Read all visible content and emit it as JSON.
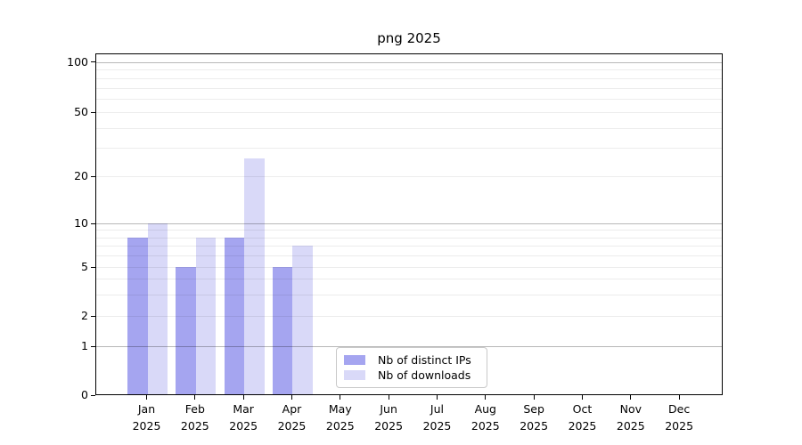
{
  "chart_data": {
    "type": "bar",
    "title": "png 2025",
    "categories": [
      {
        "month": "Jan",
        "year": "2025"
      },
      {
        "month": "Feb",
        "year": "2025"
      },
      {
        "month": "Mar",
        "year": "2025"
      },
      {
        "month": "Apr",
        "year": "2025"
      },
      {
        "month": "May",
        "year": "2025"
      },
      {
        "month": "Jun",
        "year": "2025"
      },
      {
        "month": "Jul",
        "year": "2025"
      },
      {
        "month": "Aug",
        "year": "2025"
      },
      {
        "month": "Sep",
        "year": "2025"
      },
      {
        "month": "Oct",
        "year": "2025"
      },
      {
        "month": "Nov",
        "year": "2025"
      },
      {
        "month": "Dec",
        "year": "2025"
      }
    ],
    "series": [
      {
        "name": "Nb of distinct IPs",
        "color": "#a5a5f0",
        "values": [
          8,
          5,
          8,
          5,
          0,
          0,
          0,
          0,
          0,
          0,
          0,
          0
        ]
      },
      {
        "name": "Nb of downloads",
        "color": "#d9d9f8",
        "values": [
          10,
          8,
          26,
          7,
          0,
          0,
          0,
          0,
          0,
          0,
          0,
          0
        ]
      }
    ],
    "xlabel": "",
    "ylabel": "",
    "y_ticks": [
      0,
      1,
      2,
      5,
      10,
      20,
      50,
      100
    ],
    "y_scale": "log-like with linear 0-1 segment",
    "ylim": [
      0,
      112
    ],
    "grid": true,
    "grid_on_top": true,
    "legend_position": "lower center"
  },
  "colors": {
    "background": "#ffffff",
    "axis": "#000000",
    "grid_major": "#b8b8b8",
    "grid_minor": "#ececec",
    "legend_border": "#c9c9c9",
    "text": "#000000"
  }
}
